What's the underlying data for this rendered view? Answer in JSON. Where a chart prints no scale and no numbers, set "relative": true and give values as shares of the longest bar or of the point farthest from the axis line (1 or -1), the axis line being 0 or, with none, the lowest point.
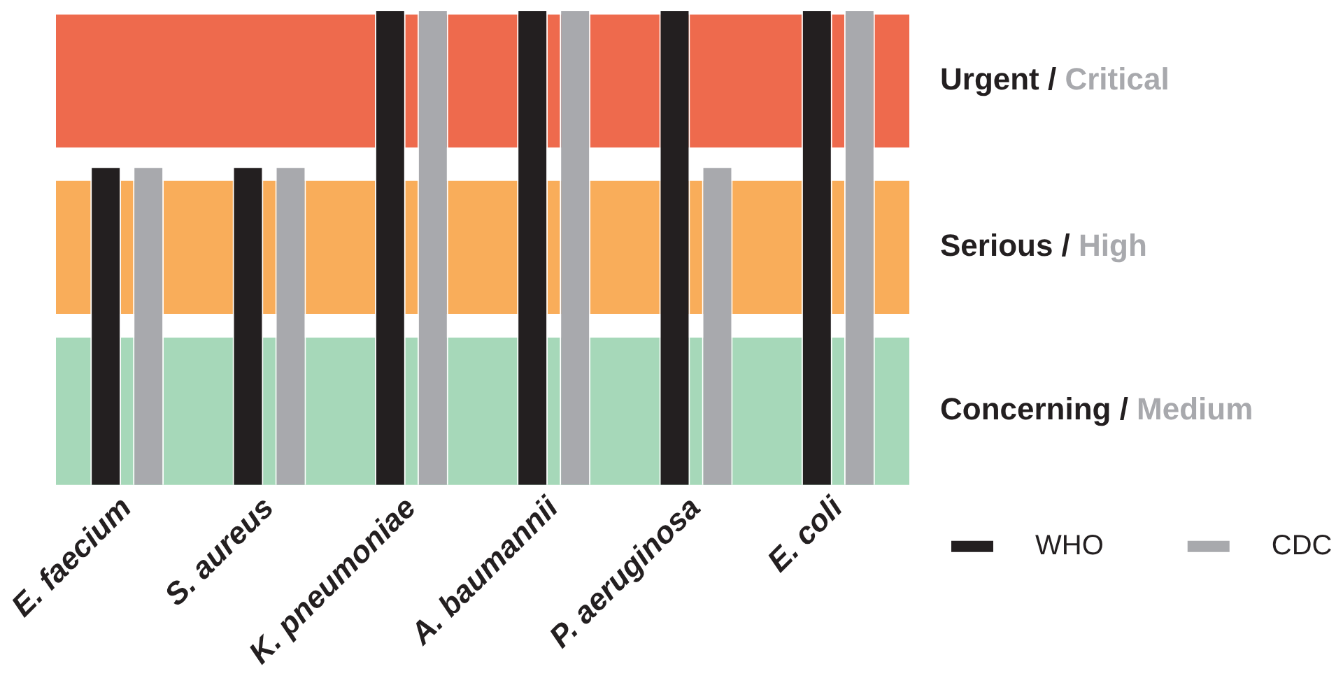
{
  "chart_data": {
    "type": "bar",
    "relative": true,
    "categories": [
      "E. faecium",
      "S. aureus",
      "K. pneumoniae",
      "A. baumannii",
      "P. aeruginosa",
      "E. coli"
    ],
    "series": [
      {
        "name": "WHO",
        "color": "#231f20",
        "values": [
          0.67,
          0.67,
          1,
          1,
          1,
          1
        ]
      },
      {
        "name": "CDC",
        "color": "#a8a9ad",
        "values": [
          0.67,
          0.67,
          1,
          1,
          0.67,
          1
        ]
      }
    ],
    "bands": [
      {
        "axis": "y",
        "from": 0,
        "to": 0.31,
        "label": "Concerning / Medium",
        "color": "#a6d8b9"
      },
      {
        "axis": "y",
        "from": 0.36,
        "to": 0.64,
        "label": "Serious / High",
        "color": "#f9ad5a"
      },
      {
        "axis": "y",
        "from": 0.71,
        "to": 0.99,
        "label": "Urgent / Critical",
        "color": "#ee6a4d"
      }
    ],
    "legend": "bottom right",
    "grid": false
  }
}
